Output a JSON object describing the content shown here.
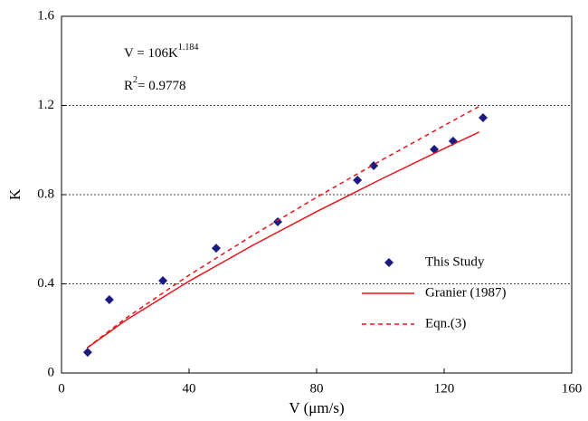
{
  "chart_data": {
    "type": "scatter",
    "xlabel": "V (μm/s)",
    "ylabel": "K",
    "xlim": [
      0,
      160
    ],
    "ylim": [
      0,
      1.6
    ],
    "xticks": [
      0,
      40,
      80,
      120,
      160
    ],
    "yticks": [
      0,
      0.4,
      0.8,
      1.2,
      1.6
    ],
    "grid": true,
    "legend": "lower right",
    "annotations": [
      {
        "text": "V = 106K",
        "superscript": "1.184"
      },
      {
        "text": "R",
        "superscript": "2",
        "suffix": "= 0.9778"
      }
    ],
    "series": [
      {
        "name": "This Study",
        "style": "marker",
        "color": "#1a1a80",
        "x": [
          8.2,
          15.0,
          31.8,
          48.5,
          67.8,
          92.8,
          97.9,
          116.9,
          122.8,
          132.2
        ],
        "values": [
          0.093,
          0.329,
          0.414,
          0.56,
          0.678,
          0.865,
          0.93,
          1.003,
          1.04,
          1.145
        ]
      },
      {
        "name": "Granier (1987)",
        "style": "solid",
        "color": "#e8141c",
        "x": [
          8,
          20,
          40,
          60,
          80,
          100,
          120,
          131
        ],
        "values": [
          0.112,
          0.235,
          0.412,
          0.573,
          0.724,
          0.868,
          1.007,
          1.081
        ]
      },
      {
        "name": "Eqn.(3)",
        "style": "dashed",
        "color": "#e8141c",
        "x": [
          8,
          20,
          40,
          60,
          80,
          100,
          120,
          131
        ],
        "values": [
          0.113,
          0.244,
          0.439,
          0.618,
          0.788,
          0.952,
          1.11,
          1.196
        ]
      }
    ]
  }
}
